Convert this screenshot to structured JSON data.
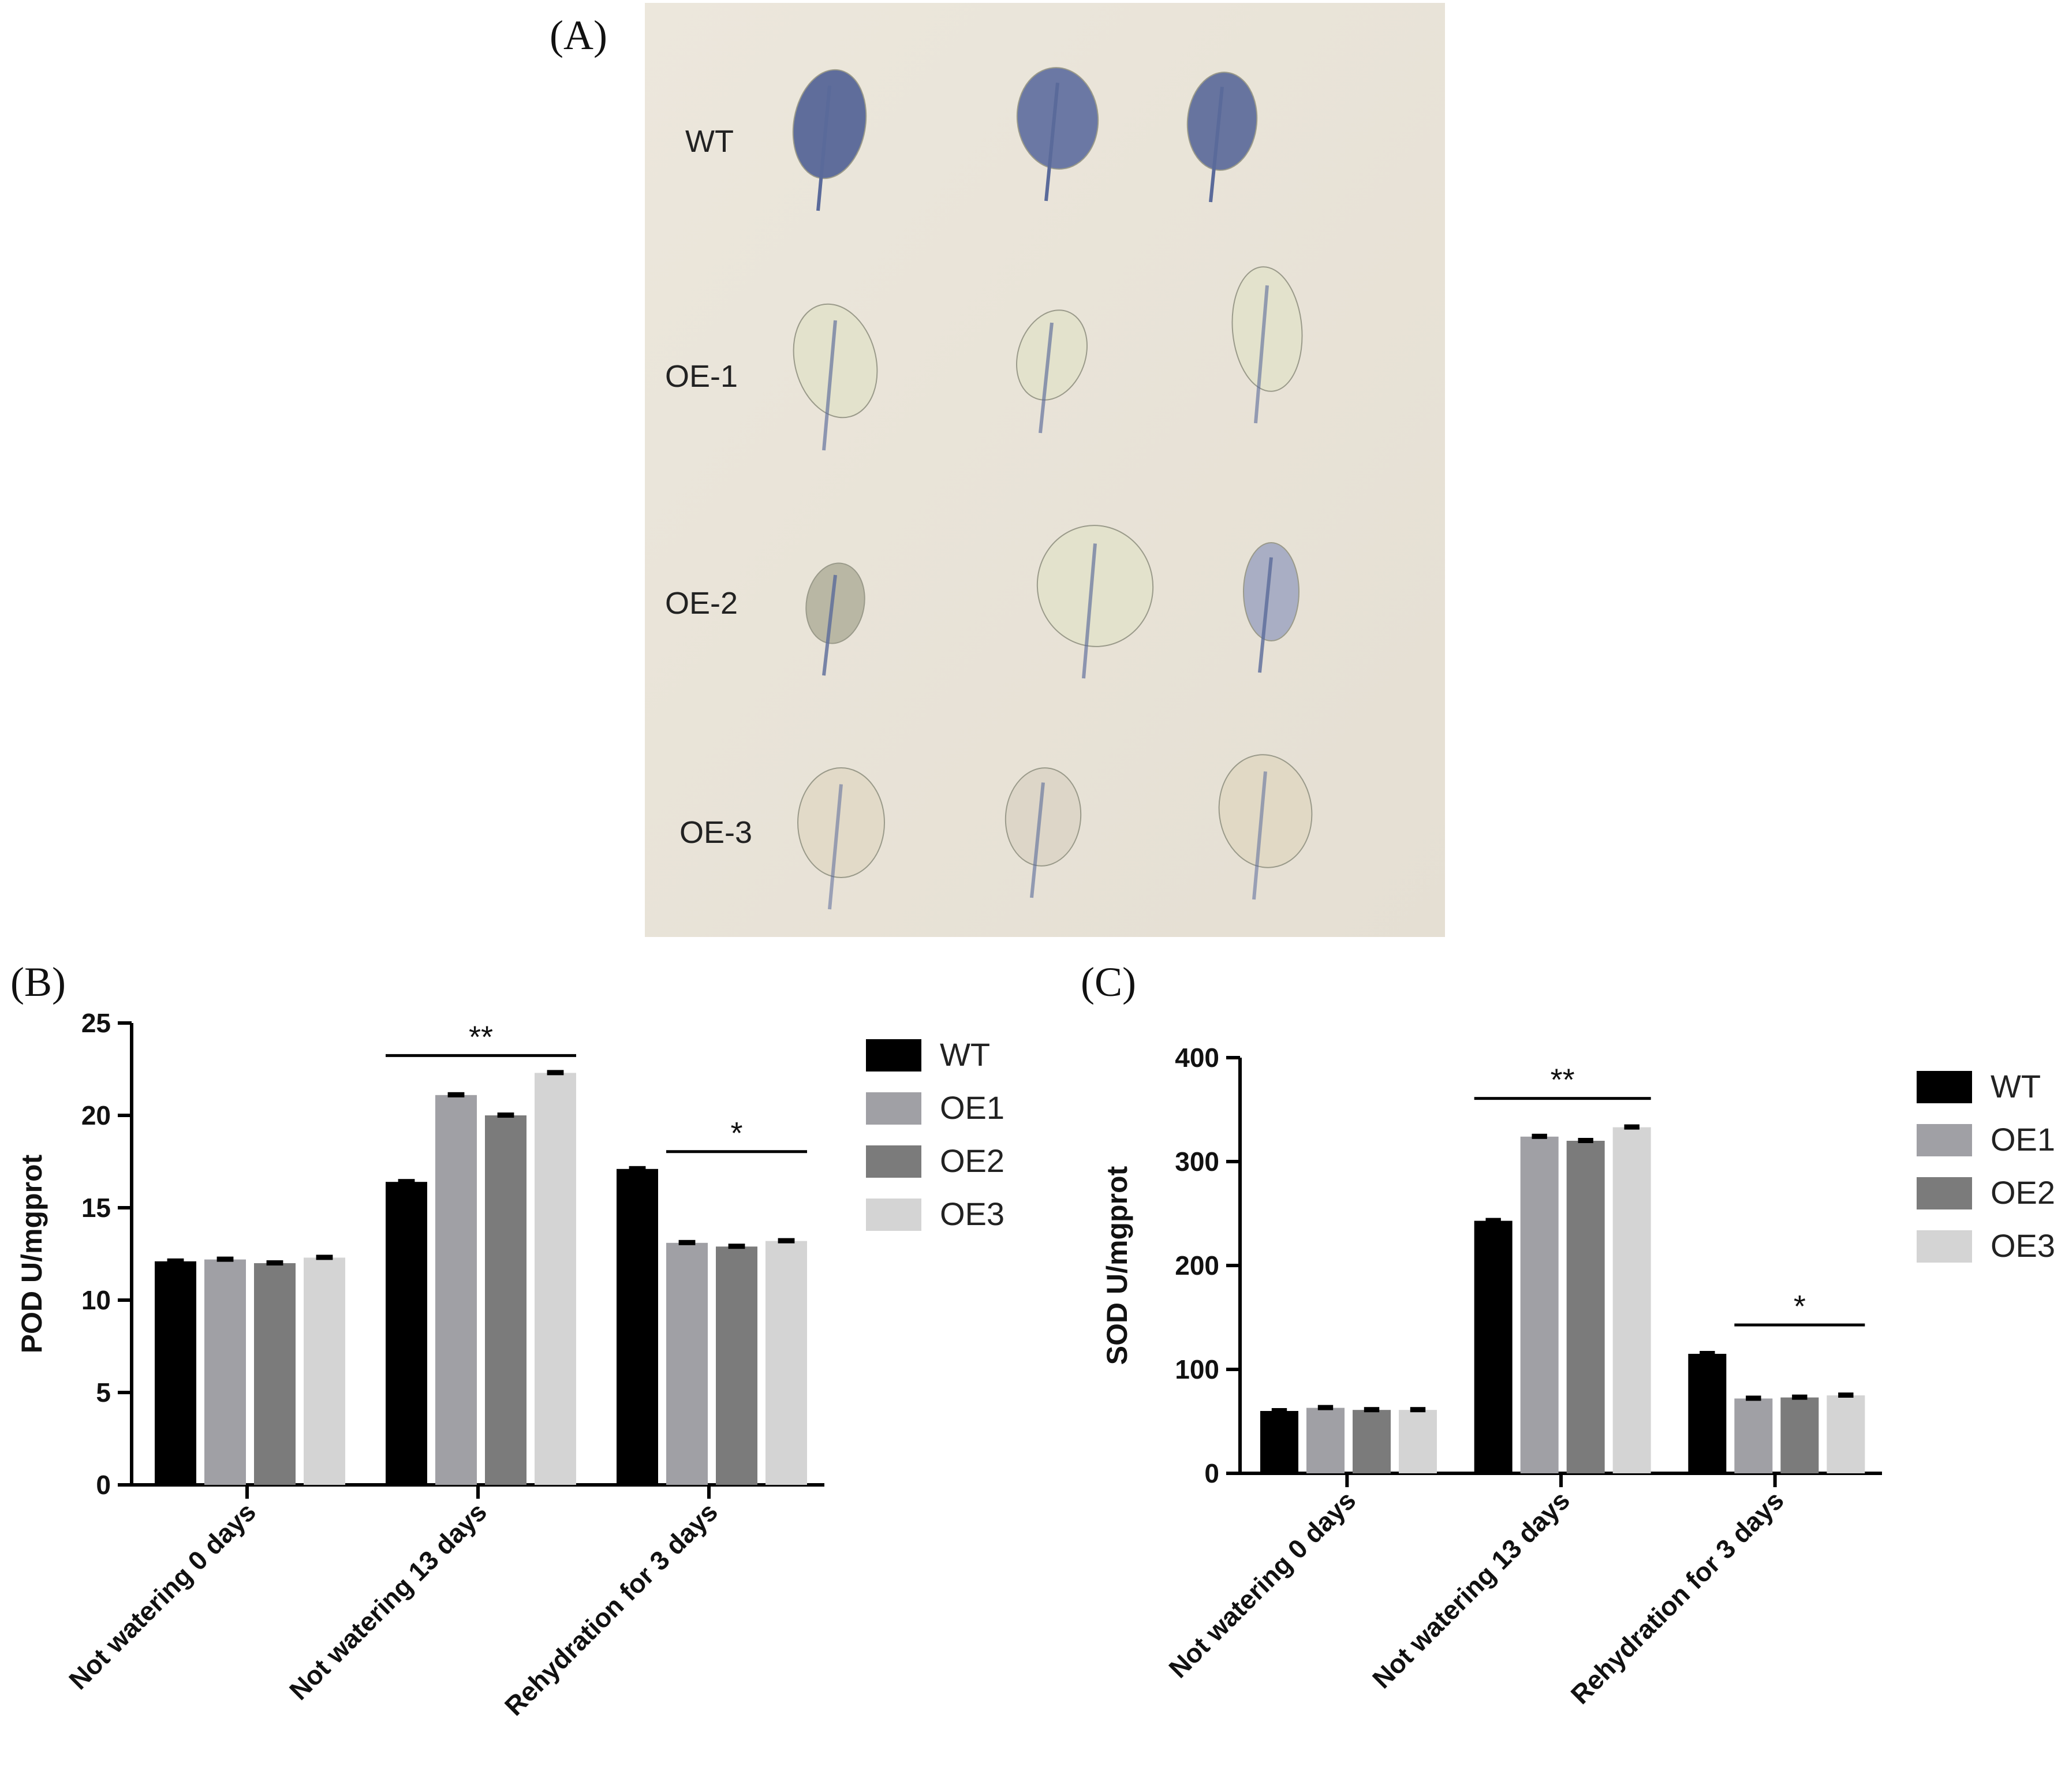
{
  "photo_panel": {
    "letter": "(A)",
    "row_labels": [
      "WT",
      "OE-1",
      "OE-2",
      "OE-3"
    ],
    "colors": {
      "background": "#e9e3d7",
      "stain_dark": "#5a6a9a",
      "leaf_light": "#e3e2cc"
    }
  },
  "chart_data": [
    {
      "panel": "(B)",
      "type": "bar",
      "ylabel": "POD U/mgprot",
      "ylim": [
        0,
        25
      ],
      "yticks": [
        0,
        5,
        10,
        15,
        20,
        25
      ],
      "categories": [
        "Not watering 0 days",
        "Not watering 13 days",
        "Rehydration for 3 days"
      ],
      "series": [
        {
          "name": "WT",
          "color": "#000000",
          "values": [
            12.1,
            16.4,
            17.1
          ]
        },
        {
          "name": "OE1",
          "color": "#a0a0a5",
          "values": [
            12.2,
            21.1,
            13.1
          ]
        },
        {
          "name": "OE2",
          "color": "#7b7b7b",
          "values": [
            12.0,
            20.0,
            12.9
          ]
        },
        {
          "name": "OE3",
          "color": "#d4d4d4",
          "values": [
            12.3,
            22.3,
            13.2
          ]
        }
      ],
      "significance": [
        {
          "category_index": 1,
          "label": "**"
        },
        {
          "category_index": 2,
          "label": "*"
        }
      ],
      "legend_position": "right",
      "grid": false
    },
    {
      "panel": "(C)",
      "type": "bar",
      "ylabel": "SOD U/mgprot",
      "ylim": [
        0,
        400
      ],
      "yticks": [
        0,
        100,
        200,
        300,
        400
      ],
      "categories": [
        "Not watering 0 days",
        "Not watering 13 days",
        "Rehydration for 3 days"
      ],
      "series": [
        {
          "name": "WT",
          "color": "#000000",
          "values": [
            60,
            243,
            115
          ]
        },
        {
          "name": "OE1",
          "color": "#a0a0a5",
          "values": [
            63,
            324,
            72
          ]
        },
        {
          "name": "OE2",
          "color": "#7b7b7b",
          "values": [
            61,
            320,
            73
          ]
        },
        {
          "name": "OE3",
          "color": "#d4d4d4",
          "values": [
            61,
            333,
            75
          ]
        }
      ],
      "significance": [
        {
          "category_index": 1,
          "label": "**"
        },
        {
          "category_index": 2,
          "label": "*"
        }
      ],
      "legend_position": "right",
      "grid": false
    }
  ]
}
